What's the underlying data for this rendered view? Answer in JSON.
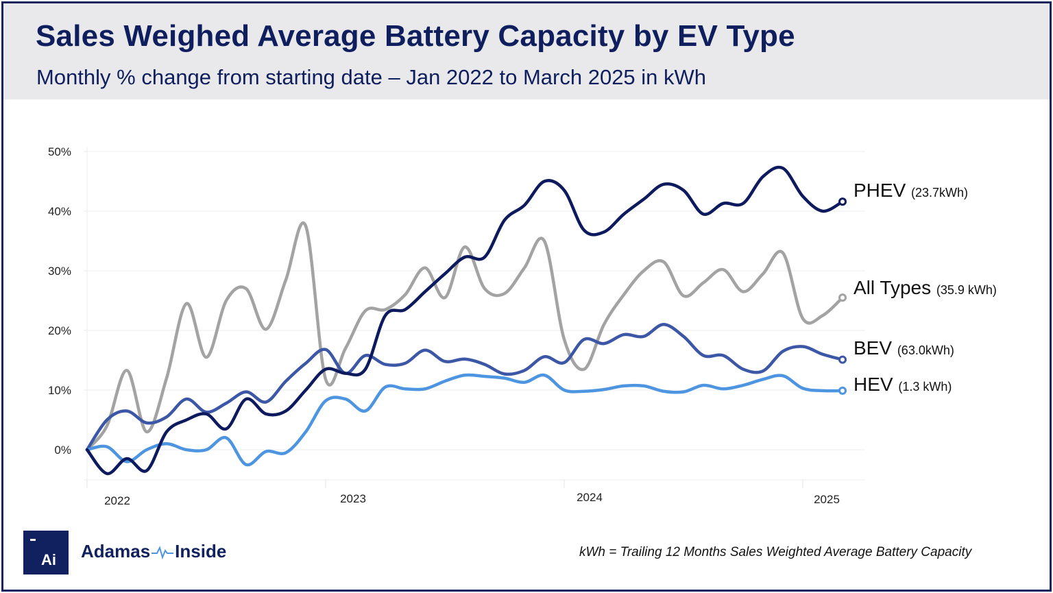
{
  "header": {
    "title": "Sales Weighed Average Battery Capacity by EV Type",
    "subtitle": "Monthly % change from starting date – Jan 2022 to March 2025 in kWh"
  },
  "footer": {
    "logo_text": "Ai",
    "brand_left": "Adamas",
    "brand_right": "Inside",
    "footnote": "kWh = Trailing 12 Months Sales Weighted Average Battery Capacity"
  },
  "chart_data": {
    "type": "line",
    "x_start": "2022-01",
    "x_end": "2025-03",
    "x_step": "month",
    "x_ticks": [
      "2022",
      "2023",
      "2024",
      "2025"
    ],
    "y_ticks": [
      "0%",
      "10%",
      "20%",
      "30%",
      "40%",
      "50%"
    ],
    "ylim": [
      -5,
      50
    ],
    "grid": true,
    "legend": "end-of-line labels",
    "series": [
      {
        "name": "PHEV",
        "annotation": "(23.7kWh)",
        "color": "#0d1b5e",
        "values": [
          0,
          -4,
          -1.5,
          -3.5,
          3,
          5,
          6,
          3.5,
          8.5,
          6,
          6.5,
          10,
          13.5,
          12.8,
          13.5,
          22.5,
          23.5,
          26.5,
          29.5,
          32.3,
          32.3,
          38.5,
          41,
          45,
          43.5,
          36.8,
          36.5,
          39.5,
          42,
          44.5,
          43.5,
          39.5,
          41.3,
          41.3,
          45.8,
          47.2,
          42.5,
          40,
          41.6
        ]
      },
      {
        "name": "All Types",
        "annotation": "(35.9 kWh)",
        "color": "#a3a3a3",
        "values": [
          0,
          4,
          13.3,
          3,
          12,
          24.5,
          15.5,
          25,
          27,
          20.2,
          28.5,
          37.5,
          11.8,
          17,
          23.3,
          23.5,
          26,
          30.5,
          25.5,
          34,
          27,
          26.2,
          30.5,
          35,
          18.5,
          13.5,
          21,
          26,
          30,
          31.5,
          25.8,
          28,
          30.2,
          26.5,
          29.5,
          33,
          22,
          22.5,
          25.5
        ]
      },
      {
        "name": "BEV",
        "annotation": "(63.0kWh)",
        "color": "#3b57a6",
        "values": [
          0,
          5,
          6.5,
          4.5,
          5.5,
          8.5,
          6.3,
          7.8,
          9.7,
          8,
          11.5,
          14.5,
          16.8,
          12.8,
          15.8,
          14.3,
          14.5,
          16.7,
          14.8,
          15.2,
          14.3,
          12.7,
          13.3,
          15.6,
          14.6,
          18.5,
          17.8,
          19.3,
          19,
          21,
          19,
          15.8,
          15.8,
          13.5,
          13.2,
          16.5,
          17.3,
          16,
          15.1
        ]
      },
      {
        "name": "HEV",
        "annotation": "(1.3 kWh)",
        "color": "#4d95e0",
        "values": [
          0,
          0.5,
          -2,
          0,
          1,
          0,
          0,
          2,
          -2.5,
          -0.3,
          -0.5,
          3,
          8.2,
          8.5,
          6.5,
          10.5,
          10.2,
          10.2,
          11.5,
          12.5,
          12.3,
          12,
          11.3,
          12.5,
          10,
          9.8,
          10.1,
          10.7,
          10.7,
          9.8,
          9.7,
          10.8,
          10.2,
          10.8,
          11.8,
          12.4,
          10.3,
          9.9,
          9.9
        ]
      }
    ]
  }
}
